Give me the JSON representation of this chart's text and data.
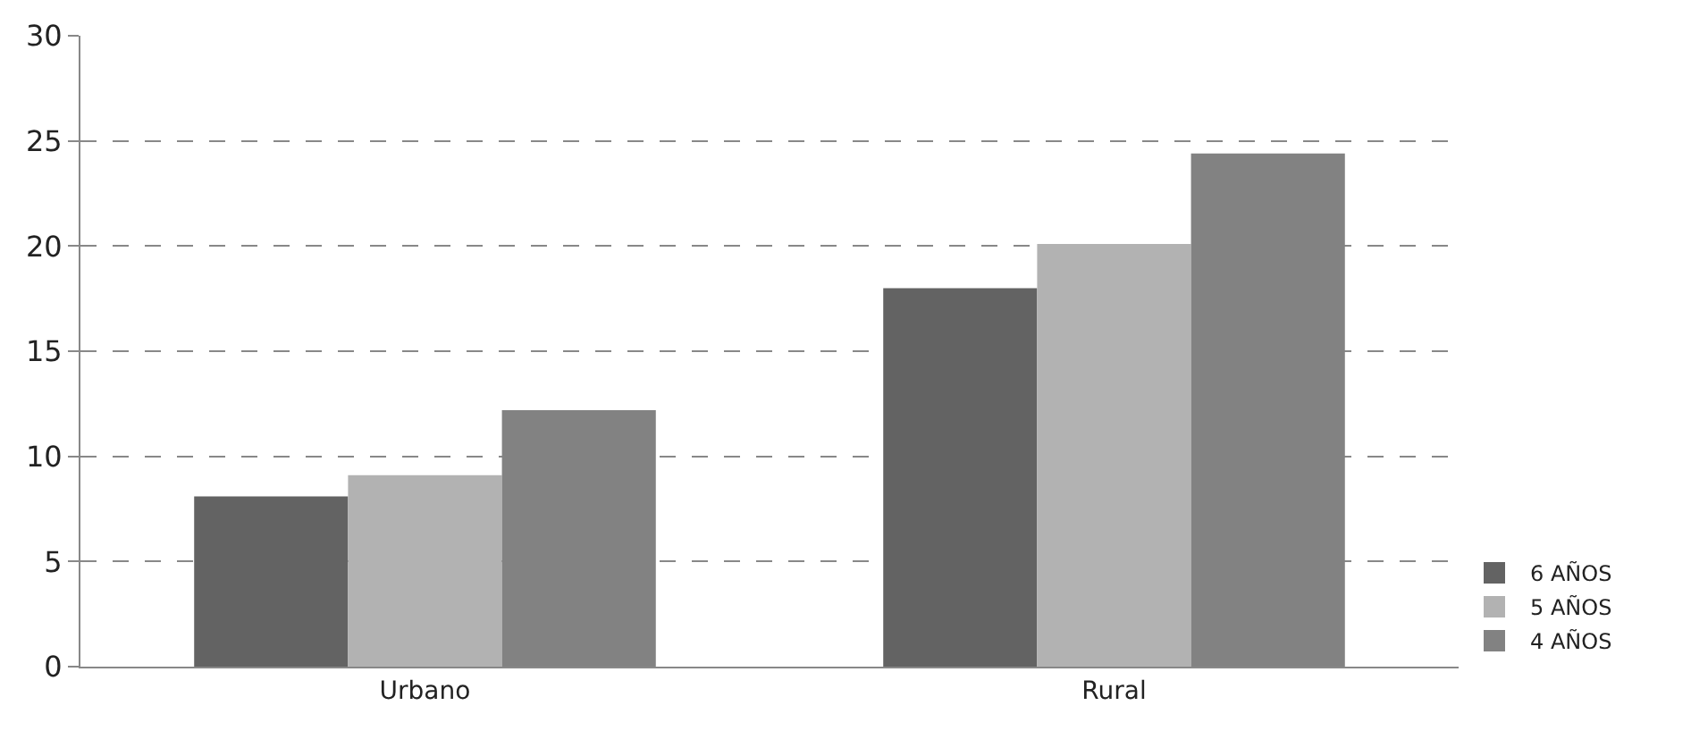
{
  "chart_data": {
    "type": "bar",
    "categories": [
      "Urbano",
      "Rural"
    ],
    "series": [
      {
        "name": "6 AÑOS",
        "color": "#636363",
        "values": [
          8.1,
          18.0
        ]
      },
      {
        "name": "5 AÑOS",
        "color": "#b2b2b2",
        "values": [
          9.1,
          20.1
        ]
      },
      {
        "name": "4 AÑOS",
        "color": "#828282",
        "values": [
          12.2,
          24.4
        ]
      }
    ],
    "ylim": [
      0,
      30
    ],
    "yticks": [
      0,
      5,
      10,
      15,
      20,
      25,
      30
    ],
    "grid": "y",
    "legend": "bottom right"
  }
}
